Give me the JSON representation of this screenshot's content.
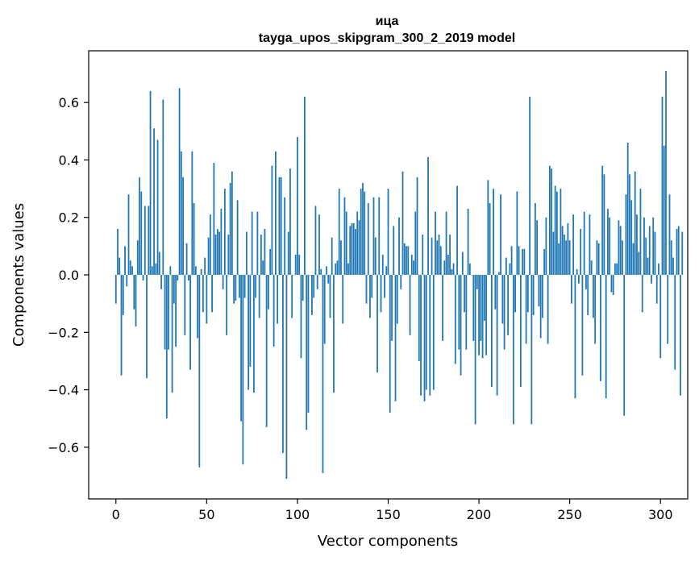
{
  "chart_data": {
    "type": "bar",
    "title_line1": "ица",
    "title_line2": "tayga_upos_skipgram_300_2_2019 model",
    "xlabel": "Vector components",
    "ylabel": "Components values",
    "xlim": [
      -15,
      315
    ],
    "ylim": [
      -0.78,
      0.78
    ],
    "xticks": [
      0,
      50,
      100,
      150,
      200,
      250,
      300
    ],
    "yticks": [
      -0.6,
      -0.4,
      -0.2,
      0.0,
      0.2,
      0.4,
      0.6
    ],
    "ytick_labels": [
      "−0.6",
      "−0.4",
      "−0.2",
      "0.0",
      "0.2",
      "0.4",
      "0.6"
    ],
    "bar_color": "#1f77b4",
    "values": [
      -0.1,
      0.16,
      0.06,
      -0.35,
      -0.14,
      0.1,
      -0.04,
      0.28,
      0.05,
      0.03,
      -0.12,
      -0.18,
      0.12,
      0.34,
      0.29,
      -0.02,
      0.24,
      -0.36,
      0.24,
      0.64,
      0.03,
      0.51,
      0.04,
      0.47,
      0.08,
      -0.05,
      0.61,
      -0.26,
      -0.5,
      -0.26,
      0.03,
      -0.41,
      -0.1,
      -0.25,
      -0.02,
      0.65,
      0.43,
      0.34,
      -0.21,
      0.11,
      -0.02,
      -0.33,
      0.43,
      0.25,
      0.03,
      -0.22,
      -0.67,
      0.02,
      -0.13,
      0.06,
      -0.17,
      0.13,
      0.21,
      -0.13,
      0.39,
      0.14,
      0.16,
      0.15,
      0.23,
      -0.05,
      0.3,
      -0.21,
      0.14,
      0.32,
      0.36,
      -0.1,
      -0.09,
      0.26,
      -0.08,
      -0.51,
      -0.66,
      -0.08,
      0.15,
      -0.4,
      -0.32,
      0.22,
      -0.41,
      -0.08,
      0.22,
      -0.15,
      0.14,
      0.05,
      0.16,
      -0.53,
      -0.12,
      0.09,
      0.38,
      -0.25,
      0.43,
      -0.17,
      0.34,
      0.34,
      -0.62,
      0.27,
      -0.71,
      0.15,
      0.37,
      -0.15,
      0.0,
      0.07,
      0.48,
      0.07,
      -0.29,
      -0.09,
      0.62,
      -0.54,
      -0.48,
      0.0,
      -0.14,
      -0.08,
      0.24,
      -0.05,
      0.21,
      0.02,
      -0.69,
      -0.24,
      0.03,
      -0.03,
      -0.15,
      0.13,
      -0.41,
      0.04,
      0.05,
      0.3,
      0.12,
      -0.17,
      0.27,
      0.22,
      0.04,
      0.17,
      0.18,
      0.18,
      0.16,
      0.22,
      0.19,
      0.3,
      0.32,
      0.29,
      -0.1,
      0.25,
      -0.15,
      -0.08,
      0.27,
      0.13,
      -0.34,
      0.27,
      -0.13,
      0.07,
      -0.08,
      0.03,
      0.3,
      -0.48,
      -0.23,
      0.17,
      -0.44,
      -0.17,
      0.2,
      -0.05,
      0.36,
      0.11,
      0.1,
      0.1,
      -0.21,
      0.07,
      0.05,
      0.22,
      0.34,
      -0.3,
      -0.42,
      0.14,
      -0.44,
      -0.4,
      0.41,
      -0.42,
      0.13,
      -0.4,
      0.22,
      0.12,
      0.14,
      0.1,
      -0.23,
      0.05,
      0.22,
      0.07,
      0.14,
      0.02,
      0.04,
      -0.31,
      0.31,
      -0.26,
      -0.35,
      0.08,
      -0.13,
      -0.26,
      0.23,
      0.04,
      0.0,
      -0.23,
      -0.52,
      -0.05,
      -0.28,
      -0.23,
      -0.29,
      -0.16,
      -0.28,
      0.33,
      0.25,
      -0.39,
      0.3,
      -0.12,
      -0.42,
      0.01,
      0.28,
      -0.17,
      -0.26,
      0.06,
      -0.21,
      0.04,
      0.1,
      -0.52,
      -0.13,
      0.29,
      0.1,
      -0.39,
      0.09,
      0.09,
      -0.24,
      -0.13,
      0.62,
      -0.52,
      -0.14,
      0.25,
      0.19,
      -0.11,
      -0.22,
      -0.15,
      0.09,
      0.2,
      -0.24,
      0.38,
      0.37,
      0.15,
      0.31,
      0.29,
      0.11,
      0.3,
      0.17,
      0.14,
      0.12,
      0.18,
      0.12,
      -0.1,
      0.21,
      -0.43,
      0.02,
      -0.03,
      0.16,
      -0.35,
      0.22,
      -0.05,
      -0.14,
      0.21,
      0.05,
      -0.15,
      -0.24,
      0.12,
      0.11,
      -0.37,
      0.38,
      0.35,
      -0.43,
      0.23,
      0.2,
      -0.06,
      -0.07,
      0.04,
      0.04,
      0.19,
      0.17,
      0.12,
      -0.49,
      0.28,
      0.46,
      0.35,
      0.26,
      0.11,
      0.36,
      0.21,
      0.08,
      0.3,
      -0.13,
      0.2,
      0.13,
      0.06,
      0.17,
      -0.03,
      0.2,
      0.15,
      -0.1,
      0.04,
      -0.29,
      0.62,
      0.45,
      0.71,
      -0.24,
      0.28,
      0.12,
      0.06,
      -0.33,
      0.16,
      0.17,
      -0.42,
      0.15
    ]
  }
}
